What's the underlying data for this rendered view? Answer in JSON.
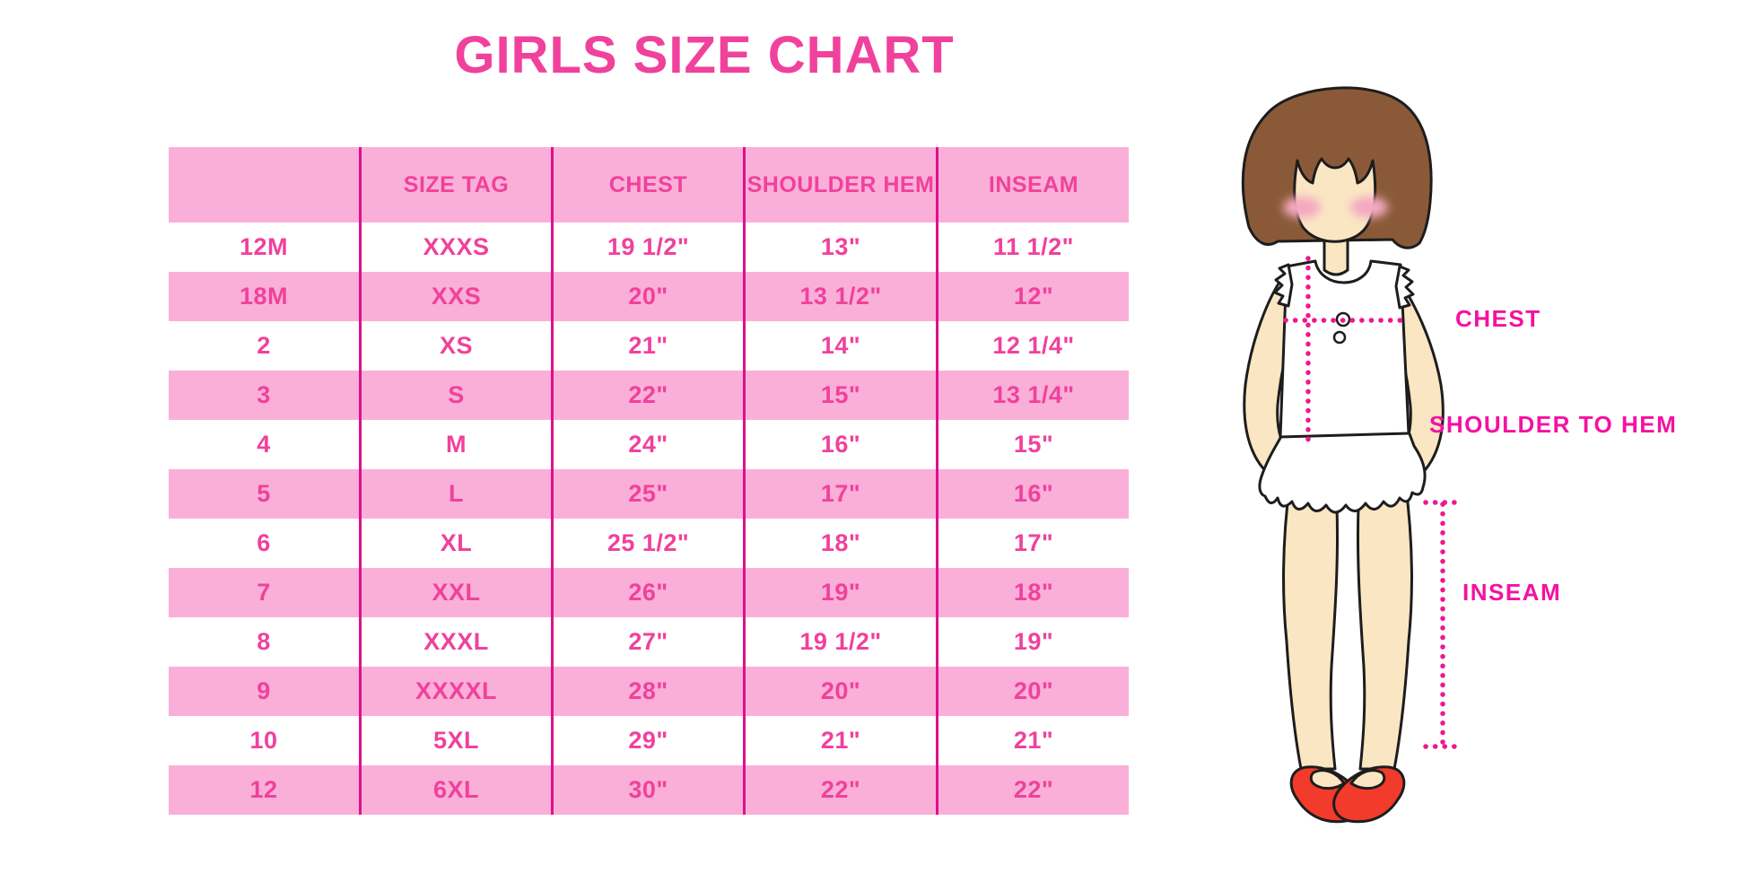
{
  "title": "GIRLS SIZE CHART",
  "chart_data": {
    "type": "table",
    "title": "GIRLS SIZE CHART",
    "columns": [
      "",
      "SIZE TAG",
      "CHEST",
      "SHOULDER HEM",
      "INSEAM"
    ],
    "rows": [
      [
        "12M",
        "XXXS",
        "19 1/2\"",
        "13\"",
        "11 1/2\""
      ],
      [
        "18M",
        "XXS",
        "20\"",
        "13 1/2\"",
        "12\""
      ],
      [
        "2",
        "XS",
        "21\"",
        "14\"",
        "12 1/4\""
      ],
      [
        "3",
        "S",
        "22\"",
        "15\"",
        "13 1/4\""
      ],
      [
        "4",
        "M",
        "24\"",
        "16\"",
        "15\""
      ],
      [
        "5",
        "L",
        "25\"",
        "17\"",
        "16\""
      ],
      [
        "6",
        "XL",
        "25 1/2\"",
        "18\"",
        "17\""
      ],
      [
        "7",
        "XXL",
        "26\"",
        "19\"",
        "18\""
      ],
      [
        "8",
        "XXXL",
        "27\"",
        "19 1/2\"",
        "19\""
      ],
      [
        "9",
        "XXXXL",
        "28\"",
        "20\"",
        "20\""
      ],
      [
        "10",
        "5XL",
        "29\"",
        "21\"",
        "21\""
      ],
      [
        "12",
        "6XL",
        "30\"",
        "22\"",
        "22\""
      ]
    ]
  },
  "figure_labels": {
    "chest": "CHEST",
    "shoulder_to_hem": "SHOULDER TO HEM",
    "inseam": "INSEAM"
  },
  "colors": {
    "accent_pink": "#F0419C",
    "row_pink": "#FAAFD8",
    "divider_magenta": "#E0108C",
    "label_magenta": "#F511A1",
    "dotted_pink": "#F01690",
    "hair_brown": "#8A5A38",
    "skin": "#FAE6C3",
    "shoe_red": "#F23B2B",
    "cheek_pink": "#F4A9C0"
  }
}
